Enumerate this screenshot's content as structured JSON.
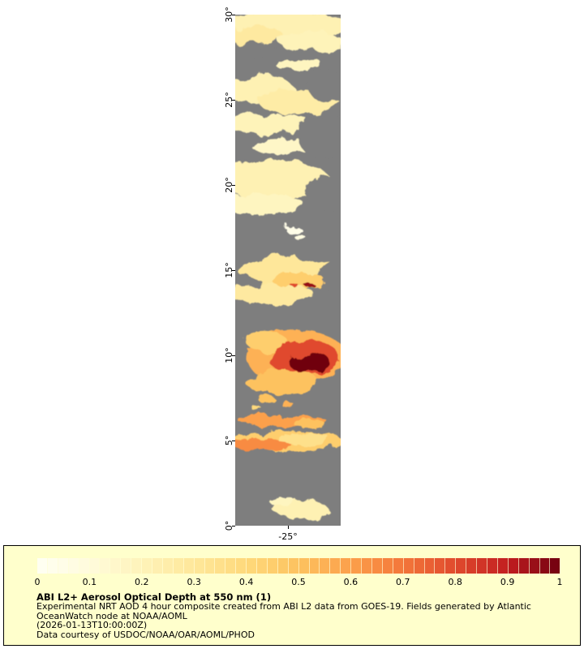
{
  "colors": {
    "page_bg": "#ffffff",
    "no_data": "#7e7e7e",
    "panel_bg": "#ffffcc",
    "panel_border": "#000000",
    "text": "#000000"
  },
  "map": {
    "y_axis": {
      "ticks": [
        {
          "label": "30°",
          "lat": 30
        },
        {
          "label": "25°",
          "lat": 25
        },
        {
          "label": "20°",
          "lat": 20
        },
        {
          "label": "15°",
          "lat": 15
        },
        {
          "label": "10°",
          "lat": 10
        },
        {
          "label": "5°",
          "lat": 5
        },
        {
          "label": "0°",
          "lat": 0
        }
      ]
    },
    "x_axis": {
      "ticks": [
        {
          "label": "-25°",
          "position": 0.5
        }
      ]
    }
  },
  "legend": {
    "title": "ABI L2+ Aerosol Optical Depth at 550 nm (1)",
    "description": "Experimental NRT AOD 4 hour composite created from ABI L2 data from GOES-19. Fields generated by Atlantic OceanWatch node at NOAA/AOML",
    "timestamp": "(2026-01-13T10:00:00Z)",
    "credit": "Data courtesy of USDOC/NOAA/OAR/AOML/PHOD",
    "colorbar_ticks": [
      {
        "label": "0",
        "value": 0
      },
      {
        "label": "0.1",
        "value": 0.1
      },
      {
        "label": "0.2",
        "value": 0.2
      },
      {
        "label": "0.3",
        "value": 0.3
      },
      {
        "label": "0.4",
        "value": 0.4
      },
      {
        "label": "0.5",
        "value": 0.5
      },
      {
        "label": "0.6",
        "value": 0.6
      },
      {
        "label": "0.7",
        "value": 0.7
      },
      {
        "label": "0.8",
        "value": 0.8
      },
      {
        "label": "0.9",
        "value": 0.9
      },
      {
        "label": "1",
        "value": 1
      }
    ]
  },
  "chart_data": {
    "type": "heatmap",
    "title": "ABI L2+ Aerosol Optical Depth at 550 nm (1)",
    "variable": "Aerosol Optical Depth at 550 nm",
    "source": "ABI L2 data from GOES-19",
    "value_range": [
      0,
      1
    ],
    "lat_range": [
      0,
      30
    ],
    "lon_tick": -25,
    "background_meaning": "gray = no data",
    "colormap_stops": [
      {
        "value": 0.0,
        "color": "#fffff3"
      },
      {
        "value": 0.1,
        "color": "#fffbdc"
      },
      {
        "value": 0.2,
        "color": "#fef3b9"
      },
      {
        "value": 0.3,
        "color": "#fee79a"
      },
      {
        "value": 0.4,
        "color": "#fed97b"
      },
      {
        "value": 0.5,
        "color": "#fdc25f"
      },
      {
        "value": 0.6,
        "color": "#fca04b"
      },
      {
        "value": 0.7,
        "color": "#f3763a"
      },
      {
        "value": 0.8,
        "color": "#e04a2d"
      },
      {
        "value": 0.9,
        "color": "#c21d20"
      },
      {
        "value": 1.0,
        "color": "#70000f"
      }
    ],
    "features": [
      {
        "cx": 0.5,
        "lat": 29.45,
        "rx": 0.58,
        "ry": 0.75,
        "aod": 0.22
      },
      {
        "cx": 0.18,
        "lat": 28.75,
        "rx": 0.28,
        "ry": 0.55,
        "aod": 0.28
      },
      {
        "cx": 0.72,
        "lat": 28.4,
        "rx": 0.3,
        "ry": 0.65,
        "aod": 0.2
      },
      {
        "cx": 0.6,
        "lat": 27.1,
        "rx": 0.22,
        "ry": 0.45,
        "aod": 0.18
      },
      {
        "cx": 0.22,
        "lat": 25.6,
        "rx": 0.34,
        "ry": 0.8,
        "aod": 0.22
      },
      {
        "cx": 0.6,
        "lat": 24.9,
        "rx": 0.38,
        "ry": 0.75,
        "aod": 0.26
      },
      {
        "cx": 0.3,
        "lat": 23.6,
        "rx": 0.42,
        "ry": 0.6,
        "aod": 0.2
      },
      {
        "cx": 0.45,
        "lat": 22.3,
        "rx": 0.3,
        "ry": 0.5,
        "aod": 0.16
      },
      {
        "cx": 0.35,
        "lat": 20.3,
        "rx": 0.55,
        "ry": 1.1,
        "aod": 0.22
      },
      {
        "cx": 0.25,
        "lat": 18.9,
        "rx": 0.4,
        "ry": 0.55,
        "aod": 0.18
      },
      {
        "cx": 0.52,
        "lat": 14.9,
        "rx": 0.48,
        "ry": 0.85,
        "aod": 0.3
      },
      {
        "cx": 0.35,
        "lat": 13.6,
        "rx": 0.4,
        "ry": 0.6,
        "aod": 0.28
      },
      {
        "cx": 0.08,
        "lat": 28.1,
        "rx": 0.16,
        "ry": 0.4,
        "aod": null
      },
      {
        "cx": 0.45,
        "lat": 27.65,
        "rx": 0.5,
        "ry": 0.35,
        "aod": null
      },
      {
        "cx": 0.88,
        "lat": 25.8,
        "rx": 0.2,
        "ry": 0.9,
        "aod": null
      },
      {
        "cx": 0.85,
        "lat": 22.8,
        "rx": 0.25,
        "ry": 1.3,
        "aod": null
      },
      {
        "cx": 0.88,
        "lat": 19.6,
        "rx": 0.22,
        "ry": 1.0,
        "aod": null
      },
      {
        "cx": 0.1,
        "lat": 21.7,
        "rx": 0.16,
        "ry": 0.5,
        "aod": null
      },
      {
        "cx": 0.92,
        "lat": 14.6,
        "rx": 0.14,
        "ry": 0.8,
        "aod": null
      },
      {
        "cx": 0.12,
        "lat": 14.3,
        "rx": 0.13,
        "ry": 0.35,
        "aod": null
      },
      {
        "cx": 0.55,
        "lat": 17.4,
        "rx": 0.07,
        "ry": 0.28,
        "aod": 0.05
      },
      {
        "cx": 0.62,
        "lat": 16.9,
        "rx": 0.05,
        "ry": 0.18,
        "aod": 0.08
      },
      {
        "cx": 0.6,
        "lat": 14.4,
        "rx": 0.25,
        "ry": 0.45,
        "aod": 0.45
      },
      {
        "cx": 0.7,
        "lat": 14.15,
        "rx": 0.05,
        "ry": 0.14,
        "aod": 0.95
      },
      {
        "cx": 0.58,
        "lat": 14.0,
        "rx": 0.04,
        "ry": 0.1,
        "aod": 0.8
      },
      {
        "cx": 0.58,
        "lat": 9.9,
        "rx": 0.48,
        "ry": 1.6,
        "aod": 0.55
      },
      {
        "cx": 0.3,
        "lat": 10.8,
        "rx": 0.2,
        "ry": 0.5,
        "aod": 0.45
      },
      {
        "cx": 0.66,
        "lat": 9.8,
        "rx": 0.34,
        "ry": 1.05,
        "aod": 0.8
      },
      {
        "cx": 0.71,
        "lat": 9.55,
        "rx": 0.2,
        "ry": 0.6,
        "aod": 1.0
      },
      {
        "cx": 0.45,
        "lat": 8.4,
        "rx": 0.35,
        "ry": 0.7,
        "aod": 0.5
      },
      {
        "cx": 0.3,
        "lat": 7.4,
        "rx": 0.08,
        "ry": 0.2,
        "aod": 0.5
      },
      {
        "cx": 0.5,
        "lat": 7.1,
        "rx": 0.06,
        "ry": 0.15,
        "aod": 0.55
      },
      {
        "cx": 0.2,
        "lat": 6.9,
        "rx": 0.05,
        "ry": 0.12,
        "aod": 0.4
      },
      {
        "cx": 0.45,
        "lat": 6.15,
        "rx": 0.42,
        "ry": 0.38,
        "aod": 0.6
      },
      {
        "cx": 0.7,
        "lat": 6.0,
        "rx": 0.15,
        "ry": 0.25,
        "aod": 0.5
      },
      {
        "cx": 0.48,
        "lat": 4.95,
        "rx": 0.55,
        "ry": 0.6,
        "aod": 0.45
      },
      {
        "cx": 0.25,
        "lat": 4.75,
        "rx": 0.28,
        "ry": 0.4,
        "aod": 0.65
      },
      {
        "cx": 0.65,
        "lat": 5.1,
        "rx": 0.25,
        "ry": 0.35,
        "aod": 0.35
      },
      {
        "cx": 0.62,
        "lat": 0.95,
        "rx": 0.26,
        "ry": 0.55,
        "aod": 0.22
      },
      {
        "cx": 0.45,
        "lat": 1.4,
        "rx": 0.12,
        "ry": 0.3,
        "aod": 0.18
      }
    ]
  }
}
